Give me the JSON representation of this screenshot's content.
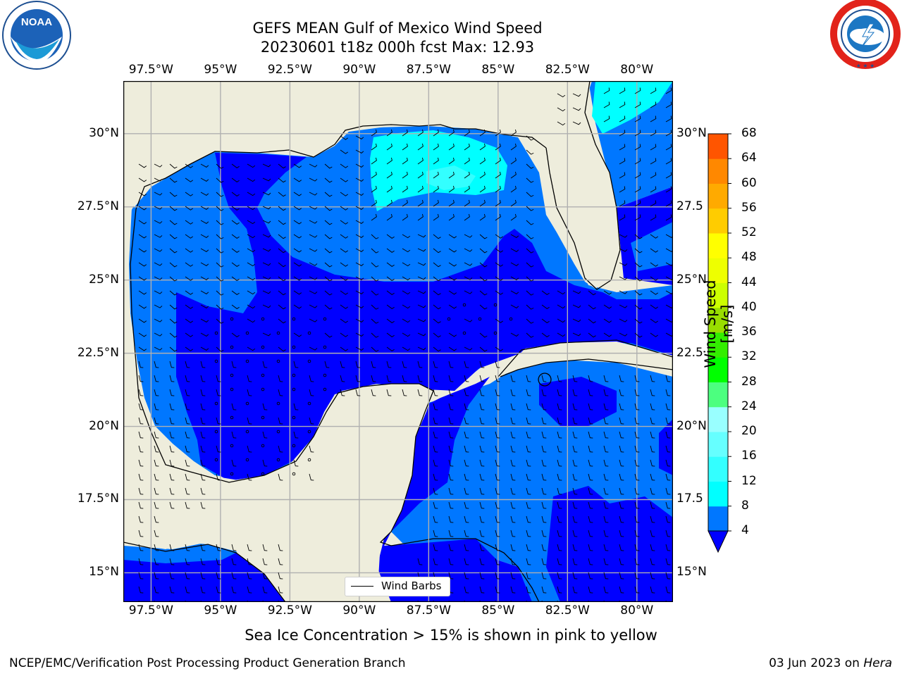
{
  "title": {
    "line1": "GEFS MEAN Gulf of Mexico Wind Speed",
    "line2": "20230601 t18z 000h fcst   Max: 12.93"
  },
  "logos": {
    "left": {
      "name": "NOAA",
      "text": "NOAA",
      "ring_text": "NATIONAL OCEANIC AND ATMOSPHERIC ADMINISTRATION · U.S. DEPARTMENT OF COMMERCE"
    },
    "right": {
      "name": "National Weather Service",
      "ring_text": "NATIONAL WEATHER SERVICE"
    }
  },
  "map": {
    "lon_range": [
      -98.5,
      -78.7
    ],
    "lat_range": [
      14.0,
      31.8
    ],
    "lon_ticks": [
      "97.5°W",
      "95°W",
      "92.5°W",
      "90°W",
      "87.5°W",
      "85°W",
      "82.5°W",
      "80°W"
    ],
    "lat_ticks": [
      "30°N",
      "27.5°N",
      "25°N",
      "22.5°N",
      "20°N",
      "17.5°N",
      "15°N"
    ],
    "lat_ticks_right": [
      "30°N",
      "27.5",
      "25°N",
      "22.5",
      "20°N",
      "17.5",
      "15°N"
    ],
    "grid": true,
    "legend": {
      "label": "Wind Barbs",
      "placement": "lower-center"
    },
    "land_color": "#eeeddc"
  },
  "colorbar": {
    "label": "Wind Speed [m/s]",
    "ticks": [
      "4",
      "8",
      "12",
      "16",
      "20",
      "24",
      "28",
      "32",
      "36",
      "40",
      "44",
      "48",
      "52",
      "56",
      "60",
      "64",
      "68"
    ],
    "colors": [
      "#0077ff",
      "#00ffff",
      "#33ffff",
      "#66ffff",
      "#99ffff",
      "#4cff7f",
      "#00ff00",
      "#33ee00",
      "#99dd00",
      "#ccff00",
      "#eeff00",
      "#ffff00",
      "#ffcc00",
      "#ffaa00",
      "#ff8800",
      "#ff5500",
      "#ff2200",
      "#ff0000"
    ],
    "extend_color": "#0000ff"
  },
  "note": "Sea Ice Concentration > 15% is shown in pink to yellow",
  "footer": {
    "left": "NCEP/EMC/Verification Post Processing Product Generation Branch",
    "right_date": "03 Jun 2023 on ",
    "right_host": "Hera"
  }
}
